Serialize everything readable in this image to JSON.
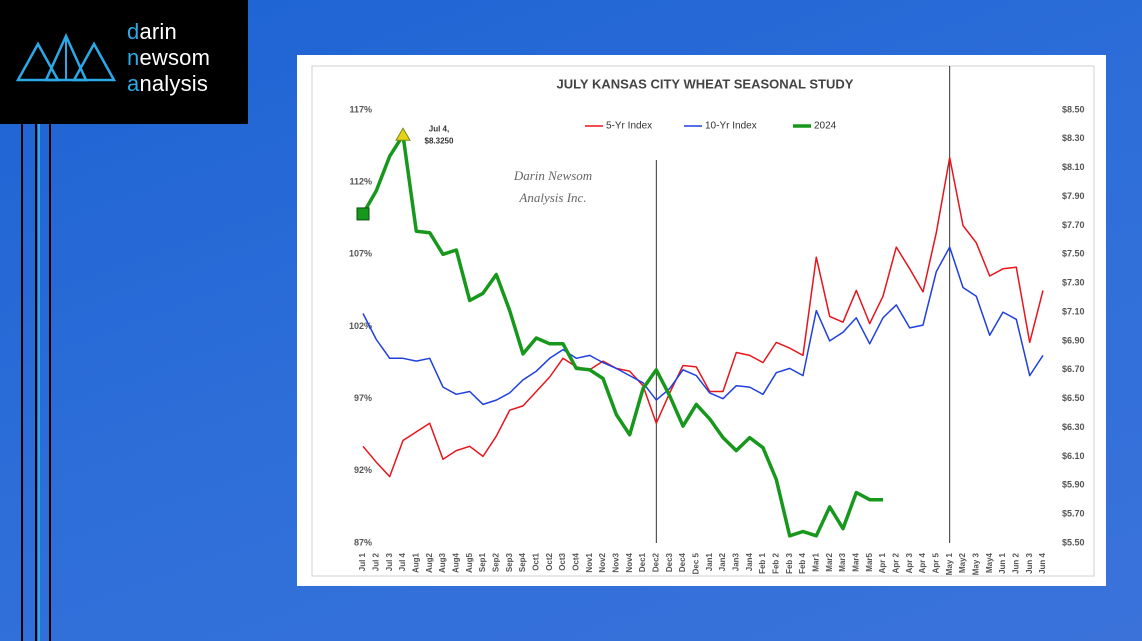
{
  "logo": {
    "lines": [
      "darin",
      "newsom",
      "analysis"
    ]
  },
  "chart_data": {
    "type": "line",
    "title": "JULY KANSAS CITY WHEAT SEASONAL STUDY",
    "categories": [
      "Jul 1",
      "Jul 2",
      "Jul 3",
      "Jul 4",
      "Aug1",
      "Aug2",
      "Aug3",
      "Aug4",
      "Aug5",
      "Sep1",
      "Sep2",
      "Sep3",
      "Sep4",
      "Oct1",
      "Oct2",
      "Oct3",
      "Oct4",
      "Nov1",
      "Nov2",
      "Nov3",
      "Nov4",
      "Dec1",
      "Dec2",
      "Dec3",
      "Dec4",
      "Dec 5",
      "Jan1",
      "Jan2",
      "Jan3",
      "Jan4",
      "Feb 1",
      "Feb 2",
      "Feb 3",
      "Feb 4",
      "Mar1",
      "Mar2",
      "Mar3",
      "Mar4",
      "Mar5",
      "Apr 1",
      "Apr 2",
      "Apr 3",
      "Apr 4",
      "Apr 5",
      "May 1",
      "May2",
      "May 3",
      "May4",
      "Jun 1",
      "Jun 2",
      "Jun 3",
      "Jun 4"
    ],
    "series": [
      {
        "name": "5-Yr Index",
        "color": "#e8141c",
        "values": [
          93.7,
          92.6,
          91.6,
          94.1,
          94.7,
          95.3,
          92.8,
          93.4,
          93.7,
          93.0,
          94.4,
          96.2,
          96.5,
          97.5,
          98.5,
          99.8,
          99.2,
          99.0,
          99.6,
          99.1,
          98.9,
          97.9,
          95.3,
          97.4,
          99.3,
          99.2,
          97.5,
          97.5,
          100.2,
          100.0,
          99.5,
          100.9,
          100.5,
          100.0,
          106.8,
          102.7,
          102.3,
          104.5,
          102.2,
          104.1,
          107.5,
          106.0,
          104.4,
          108.5,
          113.7,
          109.0,
          107.8,
          105.5,
          106.0,
          106.1,
          100.9,
          104.5
        ]
      },
      {
        "name": "10-Yr Index",
        "color": "#1f3fe0",
        "values": [
          102.9,
          101.1,
          99.8,
          99.8,
          99.6,
          99.8,
          97.8,
          97.3,
          97.5,
          96.6,
          96.9,
          97.4,
          98.3,
          98.9,
          99.8,
          100.4,
          99.8,
          100.0,
          99.5,
          99.1,
          98.6,
          98.1,
          96.9,
          97.7,
          99.0,
          98.6,
          97.4,
          97.0,
          97.9,
          97.8,
          97.3,
          98.8,
          99.1,
          98.6,
          103.1,
          101.0,
          101.6,
          102.6,
          100.8,
          102.6,
          103.5,
          101.9,
          102.1,
          105.8,
          107.5,
          104.7,
          104.1,
          101.4,
          103.0,
          102.5,
          98.6,
          100.0
        ]
      },
      {
        "name": "2024",
        "color": "#17981d",
        "axis": "y2",
        "values": [
          7.78,
          7.94,
          8.18,
          8.325,
          7.66,
          7.65,
          7.5,
          7.53,
          7.18,
          7.23,
          7.36,
          7.11,
          6.81,
          6.92,
          6.88,
          6.88,
          6.71,
          6.7,
          6.64,
          6.39,
          6.25,
          6.57,
          6.7,
          6.52,
          6.31,
          6.46,
          6.36,
          6.23,
          6.14,
          6.23,
          6.16,
          5.94,
          5.55,
          5.58,
          5.55,
          5.75,
          5.6,
          5.85,
          5.8,
          5.8,
          null,
          null,
          null,
          null,
          null,
          null,
          null,
          null,
          null,
          null,
          null,
          null
        ]
      }
    ],
    "ylim": [
      87,
      117
    ],
    "yticks": [
      {
        "value": 87,
        "label": "87%"
      },
      {
        "value": 92,
        "label": "92%"
      },
      {
        "value": 97,
        "label": "97%"
      },
      {
        "value": 102,
        "label": "102%"
      },
      {
        "value": 107,
        "label": "107%"
      },
      {
        "value": 112,
        "label": "112%"
      },
      {
        "value": 117,
        "label": "117%"
      }
    ],
    "y2lim": [
      5.5,
      8.5
    ],
    "y2ticks": [
      {
        "value": 5.5,
        "label": "$5.50"
      },
      {
        "value": 5.7,
        "label": "$5.70"
      },
      {
        "value": 5.9,
        "label": "$5.90"
      },
      {
        "value": 6.1,
        "label": "$6.10"
      },
      {
        "value": 6.3,
        "label": "$6.30"
      },
      {
        "value": 6.5,
        "label": "$6.50"
      },
      {
        "value": 6.7,
        "label": "$6.70"
      },
      {
        "value": 6.9,
        "label": "$6.90"
      },
      {
        "value": 7.1,
        "label": "$7.10"
      },
      {
        "value": 7.3,
        "label": "$7.30"
      },
      {
        "value": 7.5,
        "label": "$7.50"
      },
      {
        "value": 7.7,
        "label": "$7.70"
      },
      {
        "value": 7.9,
        "label": "$7.90"
      },
      {
        "value": 8.1,
        "label": "$8.10"
      },
      {
        "value": 8.3,
        "label": "$8.30"
      },
      {
        "value": 8.5,
        "label": "$8.50"
      }
    ],
    "vertical_lines_at": [
      "Dec2",
      "May 1"
    ],
    "annotation": [
      "Jul 4,",
      "$8.3250"
    ],
    "watermark": [
      "Darin Newsom",
      "Analysis Inc."
    ],
    "grid": false,
    "legend": "top"
  }
}
